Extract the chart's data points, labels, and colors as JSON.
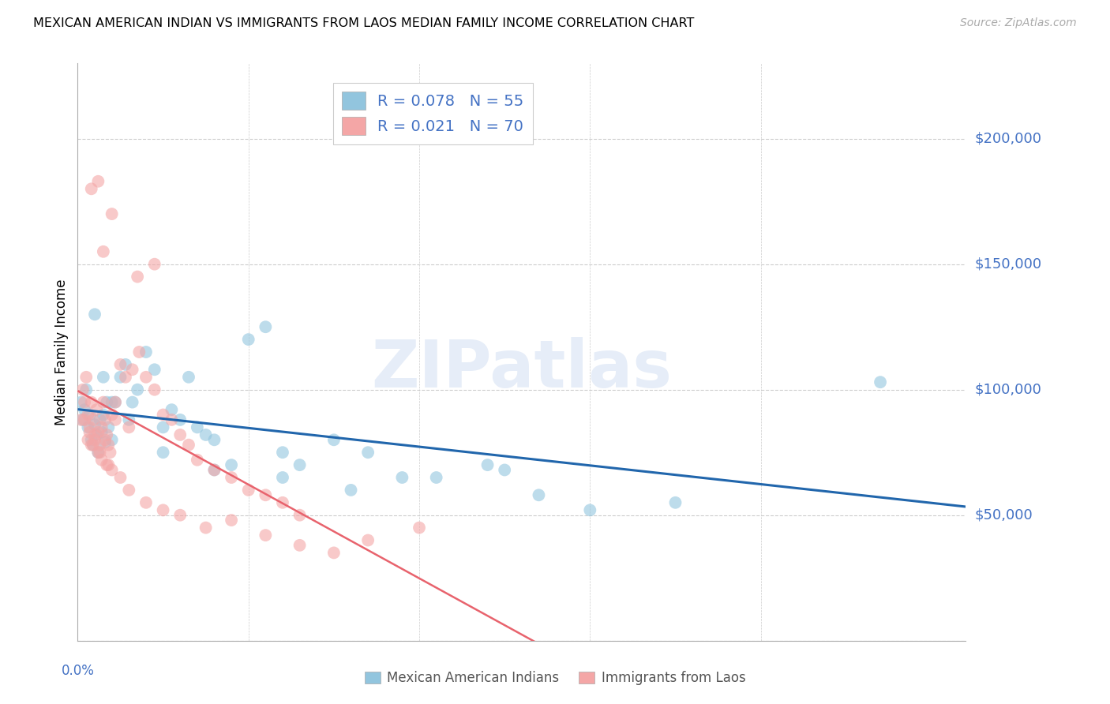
{
  "title": "MEXICAN AMERICAN INDIAN VS IMMIGRANTS FROM LAOS MEDIAN FAMILY INCOME CORRELATION CHART",
  "source": "Source: ZipAtlas.com",
  "ylabel": "Median Family Income",
  "xlim": [
    0.0,
    0.52
  ],
  "ylim": [
    0,
    230000
  ],
  "blue_color": "#92c5de",
  "pink_color": "#f4a6a6",
  "blue_line_color": "#2166ac",
  "pink_line_color": "#e8636d",
  "watermark": "ZIPatlas",
  "legend_blue_r": "R = 0.078",
  "legend_blue_n": "N = 55",
  "legend_pink_r": "R = 0.021",
  "legend_pink_n": "N = 70",
  "yticks": [
    0,
    50000,
    100000,
    150000,
    200000
  ],
  "ytick_labels": [
    "",
    "$50,000",
    "$100,000",
    "$150,000",
    "$200,000"
  ],
  "blue_scatter_x": [
    0.002,
    0.003,
    0.004,
    0.005,
    0.006,
    0.007,
    0.008,
    0.009,
    0.01,
    0.011,
    0.012,
    0.013,
    0.014,
    0.015,
    0.016,
    0.017,
    0.018,
    0.02,
    0.022,
    0.025,
    0.028,
    0.032,
    0.035,
    0.04,
    0.045,
    0.05,
    0.055,
    0.06,
    0.065,
    0.07,
    0.075,
    0.08,
    0.09,
    0.1,
    0.11,
    0.12,
    0.13,
    0.15,
    0.17,
    0.19,
    0.21,
    0.24,
    0.27,
    0.3,
    0.35,
    0.01,
    0.015,
    0.02,
    0.03,
    0.05,
    0.08,
    0.12,
    0.16,
    0.47,
    0.25
  ],
  "blue_scatter_y": [
    95000,
    88000,
    92000,
    100000,
    85000,
    90000,
    80000,
    78000,
    86000,
    82000,
    75000,
    88000,
    83000,
    90000,
    79000,
    95000,
    85000,
    80000,
    95000,
    105000,
    110000,
    95000,
    100000,
    115000,
    108000,
    85000,
    92000,
    88000,
    105000,
    85000,
    82000,
    80000,
    70000,
    120000,
    125000,
    75000,
    70000,
    80000,
    75000,
    65000,
    65000,
    70000,
    58000,
    52000,
    55000,
    130000,
    105000,
    95000,
    88000,
    75000,
    68000,
    65000,
    60000,
    103000,
    68000
  ],
  "pink_scatter_x": [
    0.002,
    0.003,
    0.004,
    0.005,
    0.006,
    0.007,
    0.008,
    0.009,
    0.01,
    0.011,
    0.012,
    0.013,
    0.014,
    0.015,
    0.016,
    0.017,
    0.018,
    0.019,
    0.02,
    0.022,
    0.025,
    0.028,
    0.032,
    0.036,
    0.04,
    0.045,
    0.05,
    0.055,
    0.06,
    0.065,
    0.07,
    0.08,
    0.09,
    0.1,
    0.11,
    0.12,
    0.13,
    0.006,
    0.008,
    0.01,
    0.012,
    0.014,
    0.016,
    0.018,
    0.02,
    0.025,
    0.03,
    0.04,
    0.05,
    0.06,
    0.075,
    0.09,
    0.11,
    0.13,
    0.15,
    0.17,
    0.2,
    0.004,
    0.007,
    0.009,
    0.013,
    0.017,
    0.022,
    0.03,
    0.008,
    0.015,
    0.02,
    0.012,
    0.035,
    0.045
  ],
  "pink_scatter_y": [
    88000,
    100000,
    95000,
    105000,
    90000,
    85000,
    95000,
    88000,
    80000,
    92000,
    83000,
    78000,
    85000,
    95000,
    88000,
    82000,
    78000,
    75000,
    90000,
    95000,
    110000,
    105000,
    108000,
    115000,
    105000,
    100000,
    90000,
    88000,
    82000,
    78000,
    72000,
    68000,
    65000,
    60000,
    58000,
    55000,
    50000,
    80000,
    78000,
    82000,
    75000,
    72000,
    80000,
    70000,
    68000,
    65000,
    60000,
    55000,
    52000,
    50000,
    45000,
    48000,
    42000,
    38000,
    35000,
    40000,
    45000,
    88000,
    83000,
    78000,
    75000,
    70000,
    88000,
    85000,
    180000,
    155000,
    170000,
    183000,
    145000,
    150000
  ]
}
